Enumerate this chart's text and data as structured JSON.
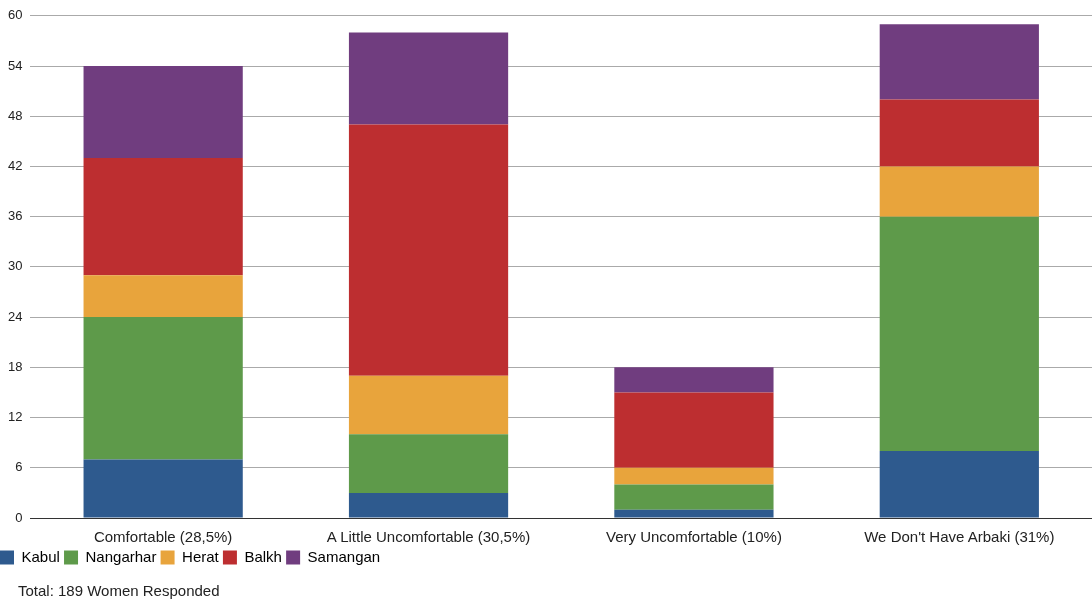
{
  "chart_data": {
    "type": "bar",
    "stacked": true,
    "categories": [
      "Comfortable (28,5%)",
      "A Little Uncomfortable (30,5%)",
      "Very Uncomfortable (10%)",
      "We Don't Have Arbaki (31%)"
    ],
    "series": [
      {
        "name": "Kabul",
        "color": "#2e5a8e",
        "values": [
          7,
          3,
          1,
          8
        ]
      },
      {
        "name": "Nangarhar",
        "color": "#5e9a4a",
        "values": [
          17,
          7,
          3,
          28
        ]
      },
      {
        "name": "Herat",
        "color": "#e8a43c",
        "values": [
          5,
          7,
          2,
          6
        ]
      },
      {
        "name": "Balkh",
        "color": "#bd2e30",
        "values": [
          14,
          30,
          9,
          8
        ]
      },
      {
        "name": "Samangan",
        "color": "#703d7f",
        "values": [
          11,
          11,
          3,
          9
        ]
      }
    ],
    "ylim": [
      0,
      60
    ],
    "yticks": [
      0,
      6,
      12,
      18,
      24,
      30,
      36,
      42,
      48,
      54,
      60
    ],
    "grid": "y",
    "legend": "bottom",
    "annotations": [
      "Total: 189 Women Responded"
    ]
  }
}
